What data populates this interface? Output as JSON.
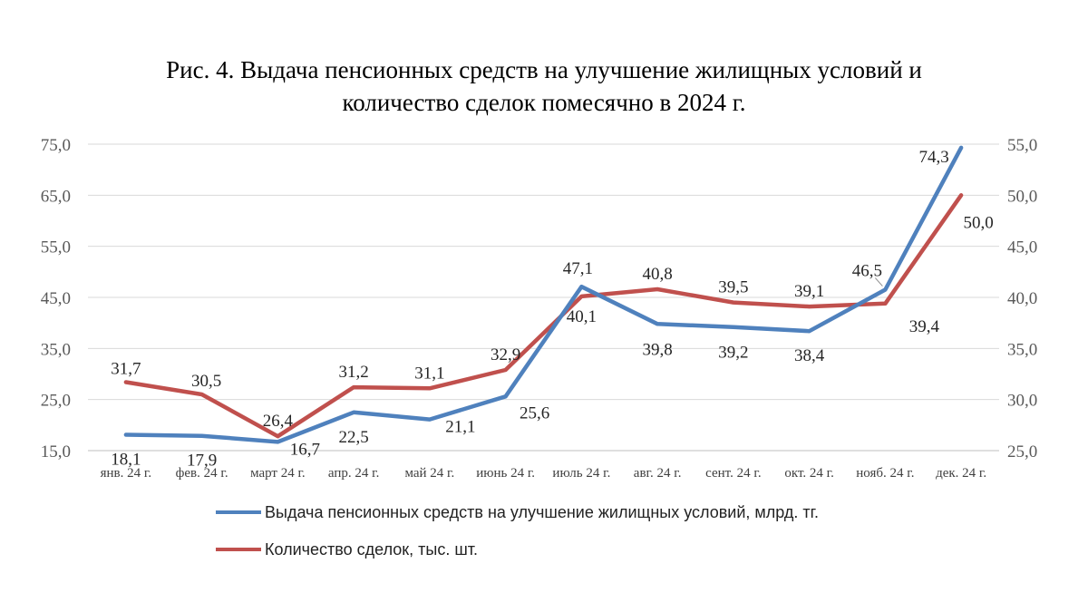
{
  "chart_data": {
    "type": "line",
    "title": "Рис. 4. Выдача пенсионных средств на улучшение жилищных условий и количество сделок помесячно в 2024 г.",
    "title_lines": [
      "Рис. 4. Выдача пенсионных средств на улучшение жилищных условий и",
      "количество сделок помесячно в 2024 г."
    ],
    "categories": [
      "янв. 24 г.",
      "фев. 24 г.",
      "март 24 г.",
      "апр. 24 г.",
      "май 24 г.",
      "июнь 24 г.",
      "июль 24 г.",
      "авг. 24 г.",
      "сент. 24 г.",
      "окт. 24 г.",
      "нояб. 24 г.",
      "дек. 24 г."
    ],
    "y_left": {
      "min": 15,
      "max": 75,
      "step": 10,
      "tick_labels": [
        "15,0",
        "25,0",
        "35,0",
        "45,0",
        "55,0",
        "65,0",
        "75,0"
      ]
    },
    "y_right": {
      "min": 25,
      "max": 55,
      "step": 5,
      "tick_labels": [
        "25,0",
        "30,0",
        "35,0",
        "40,0",
        "45,0",
        "50,0",
        "55,0"
      ]
    },
    "grid": true,
    "legend_position": "bottom",
    "series": [
      {
        "name": "Выдача пенсионных средств на улучшение жилищных условий, млрд. тг.",
        "axis": "left",
        "color": "#4F81BD",
        "values": [
          18.1,
          17.9,
          16.7,
          22.5,
          21.1,
          25.6,
          47.1,
          39.8,
          39.2,
          38.4,
          46.5,
          74.3
        ],
        "labels": [
          "18,1",
          "17,9",
          "16,7",
          "22,5",
          "21,1",
          "25,6",
          "47,1",
          "39,8",
          "39,2",
          "38,4",
          "46,5",
          "74,3"
        ]
      },
      {
        "name": "Количество сделок, тыс. шт.",
        "axis": "right",
        "color": "#C0504D",
        "values": [
          31.7,
          30.5,
          26.4,
          31.2,
          31.1,
          32.9,
          40.1,
          40.8,
          39.5,
          39.1,
          39.4,
          50.0
        ],
        "labels": [
          "31,7",
          "30,5",
          "26,4",
          "31,2",
          "31,1",
          "32,9",
          "40,1",
          "40,8",
          "39,5",
          "39,1",
          "39,4",
          "50,0"
        ]
      }
    ]
  }
}
